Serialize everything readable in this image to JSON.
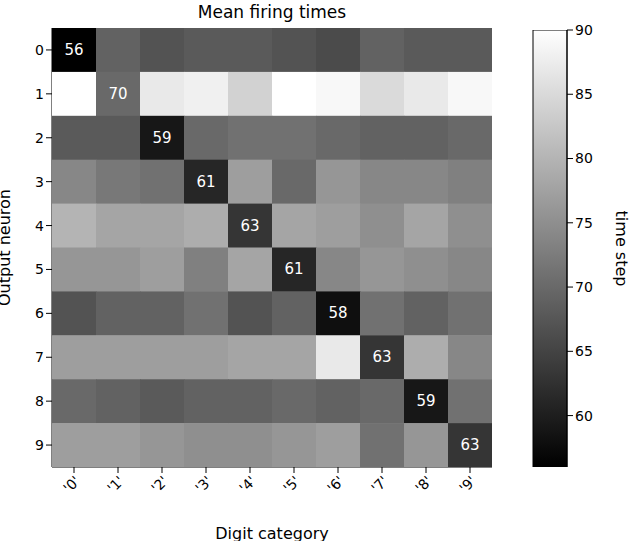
{
  "chart_data": {
    "type": "heatmap",
    "title": "Mean firing times",
    "x_label": "Digit category",
    "y_label": "Output neuron",
    "categories": [
      "'0'",
      "'1'",
      "'2'",
      "'3'",
      "'4'",
      "'5'",
      "'6'",
      "'7'",
      "'8'",
      "'9'"
    ],
    "rows": [
      "0",
      "1",
      "2",
      "3",
      "4",
      "5",
      "6",
      "7",
      "8",
      "9"
    ],
    "cells": [
      [
        56,
        69,
        67,
        68,
        68,
        67,
        66,
        69,
        68,
        68
      ],
      [
        90,
        70,
        87,
        88,
        84,
        90,
        89,
        85,
        87,
        89
      ],
      [
        68,
        68,
        59,
        70,
        71,
        71,
        70,
        69,
        69,
        70
      ],
      [
        74,
        72,
        71,
        61,
        77,
        70,
        76,
        74,
        74,
        73
      ],
      [
        80,
        78,
        78,
        79,
        63,
        78,
        77,
        75,
        78,
        75
      ],
      [
        76,
        76,
        77,
        73,
        78,
        61,
        74,
        76,
        75,
        74
      ],
      [
        67,
        69,
        69,
        71,
        67,
        69,
        58,
        71,
        69,
        71
      ],
      [
        77,
        77,
        77,
        77,
        78,
        78,
        87,
        63,
        79,
        74
      ],
      [
        70,
        69,
        68,
        69,
        69,
        70,
        69,
        70,
        59,
        71
      ],
      [
        77,
        77,
        76,
        75,
        75,
        76,
        77,
        71,
        76,
        63
      ]
    ],
    "value_labels": [
      [
        "56",
        null,
        null,
        null,
        null,
        null,
        null,
        null,
        null,
        null
      ],
      [
        null,
        "70",
        null,
        null,
        null,
        null,
        null,
        null,
        null,
        null
      ],
      [
        null,
        null,
        "59",
        null,
        null,
        null,
        null,
        null,
        null,
        null
      ],
      [
        null,
        null,
        null,
        "61",
        null,
        null,
        null,
        null,
        null,
        null
      ],
      [
        null,
        null,
        null,
        null,
        "63",
        null,
        null,
        null,
        null,
        null
      ],
      [
        null,
        null,
        null,
        null,
        null,
        "61",
        null,
        null,
        null,
        null
      ],
      [
        null,
        null,
        null,
        null,
        null,
        null,
        "58",
        null,
        null,
        null
      ],
      [
        null,
        null,
        null,
        null,
        null,
        null,
        null,
        "63",
        null,
        null
      ],
      [
        null,
        null,
        null,
        null,
        null,
        null,
        null,
        null,
        "59",
        null
      ],
      [
        null,
        null,
        null,
        null,
        null,
        null,
        null,
        null,
        null,
        "63"
      ]
    ],
    "color_bar": {
      "label": "time step",
      "range": [
        56,
        90
      ],
      "ticks": [
        60,
        65,
        70,
        75,
        80,
        85,
        90
      ],
      "colors": [
        "#000000",
        "#ffffff"
      ]
    }
  }
}
